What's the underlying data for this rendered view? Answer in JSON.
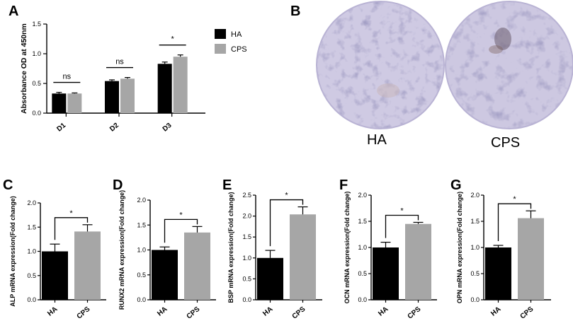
{
  "colors": {
    "HA": "#000000",
    "CPS": "#a6a6a6",
    "axis": "#000000",
    "stain_base": "#cfcae3",
    "stain_dark": "#5e5a8e"
  },
  "panel_letters": [
    "A",
    "B",
    "C",
    "D",
    "E",
    "F",
    "G"
  ],
  "chart_data": [
    {
      "id": "A",
      "type": "bar",
      "ylabel": "Absorbance OD at 450nm",
      "ylim": [
        0,
        1.5
      ],
      "yticks": [
        "0.0",
        "0.5",
        "1.0",
        "1.5"
      ],
      "categories": [
        "D1",
        "D2",
        "D3"
      ],
      "series": [
        {
          "name": "HA",
          "values": [
            0.33,
            0.54,
            0.83
          ],
          "errors": [
            0.02,
            0.02,
            0.03
          ]
        },
        {
          "name": "CPS",
          "values": [
            0.33,
            0.58,
            0.95
          ],
          "errors": [
            0.01,
            0.02,
            0.03
          ]
        }
      ],
      "significance": [
        "ns",
        "ns",
        "*"
      ],
      "legend": "right"
    },
    {
      "id": "C",
      "type": "bar",
      "ylabel": "ALP mRNA expression(Fold change)",
      "ylim": [
        0,
        2.0
      ],
      "yticks": [
        "0.0",
        "0.5",
        "1.0",
        "1.5",
        "2.0"
      ],
      "categories": [
        "HA",
        "CPS"
      ],
      "values": [
        1.0,
        1.41
      ],
      "errors": [
        0.15,
        0.14
      ],
      "significance": "*"
    },
    {
      "id": "D",
      "type": "bar",
      "ylabel": "RUNX2 mRNA expression(Fold change)",
      "ylim": [
        0,
        2.0
      ],
      "yticks": [
        "0.0",
        "0.5",
        "1.0",
        "1.5",
        "2.0"
      ],
      "categories": [
        "HA",
        "CPS"
      ],
      "values": [
        1.0,
        1.35
      ],
      "errors": [
        0.06,
        0.12
      ],
      "significance": "*"
    },
    {
      "id": "E",
      "type": "bar",
      "ylabel": "BSP mRNA expression(Fold change)",
      "ylim": [
        0,
        2.5
      ],
      "yticks": [
        "0.0",
        "0.5",
        "1.0",
        "1.5",
        "2.0",
        "2.5"
      ],
      "categories": [
        "HA",
        "CPS"
      ],
      "values": [
        1.0,
        2.04
      ],
      "errors": [
        0.18,
        0.18
      ],
      "significance": "*"
    },
    {
      "id": "F",
      "type": "bar",
      "ylabel": "OCN mRNA expression(Fold change)",
      "ylim": [
        0,
        2.0
      ],
      "yticks": [
        "0.0",
        "0.5",
        "1.0",
        "1.5",
        "2.0"
      ],
      "categories": [
        "HA",
        "CPS"
      ],
      "values": [
        1.0,
        1.45
      ],
      "errors": [
        0.1,
        0.03
      ],
      "significance": "*"
    },
    {
      "id": "G",
      "type": "bar",
      "ylabel": "OPN mRNA expression(Fold change)",
      "ylim": [
        0,
        2.0
      ],
      "yticks": [
        "0.0",
        "0.5",
        "1.0",
        "1.5",
        "2.0"
      ],
      "categories": [
        "HA",
        "CPS"
      ],
      "values": [
        1.0,
        1.56
      ],
      "errors": [
        0.04,
        0.14
      ],
      "significance": "*"
    }
  ],
  "stain_images": {
    "labels": [
      "HA",
      "CPS"
    ]
  }
}
